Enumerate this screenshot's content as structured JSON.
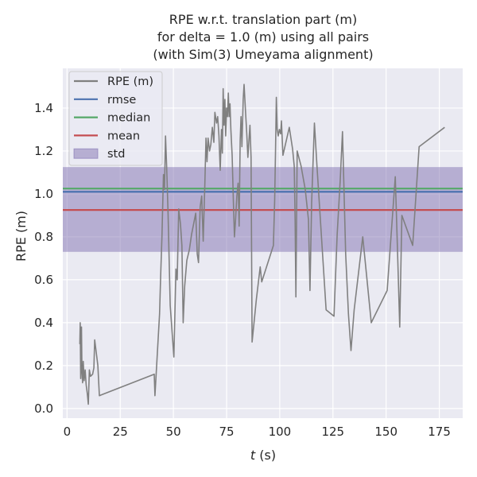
{
  "chart_data": {
    "type": "line",
    "title_lines": [
      "RPE w.r.t. translation part (m)",
      "for delta = 1.0 (m) using all pairs",
      "(with Sim(3) Umeyama alignment)"
    ],
    "xlabel_italic": "t",
    "xlabel_rest": " (s)",
    "ylabel": "RPE (m)",
    "xlim": [
      -2,
      186
    ],
    "ylim": [
      -0.045,
      1.585
    ],
    "x_ticks": [
      0,
      25,
      50,
      75,
      100,
      125,
      150,
      175
    ],
    "x_tick_labels": [
      "0",
      "25",
      "50",
      "75",
      "100",
      "125",
      "150",
      "175"
    ],
    "y_ticks": [
      0.0,
      0.2,
      0.4,
      0.6,
      0.8,
      1.0,
      1.2,
      1.4
    ],
    "y_tick_labels": [
      "0.0",
      "0.2",
      "0.4",
      "0.6",
      "0.8",
      "1.0",
      "1.2",
      "1.4"
    ],
    "grid": true,
    "legend_position": "upper-left",
    "legend": [
      {
        "label": "RPE (m)",
        "kind": "line",
        "color": "#808080"
      },
      {
        "label": "rmse",
        "kind": "line",
        "color": "#4c72b0"
      },
      {
        "label": "median",
        "kind": "line",
        "color": "#55a868"
      },
      {
        "label": "mean",
        "kind": "line",
        "color": "#c44e52"
      },
      {
        "label": "std",
        "kind": "patch",
        "color": "#8172b2"
      }
    ],
    "stats": {
      "rmse": 1.01,
      "median": 1.025,
      "mean": 0.925,
      "std_lower": 0.73,
      "std_upper": 1.125
    },
    "colors": {
      "background": "#eaeaf2",
      "grid": "#ffffff",
      "rpe": "#808080",
      "rmse": "#4c72b0",
      "median": "#55a868",
      "mean": "#c44e52",
      "std": "#8172b2"
    },
    "series": [
      {
        "name": "RPE (m)",
        "points": [
          [
            6.0,
            0.3
          ],
          [
            6.2,
            0.4
          ],
          [
            6.4,
            0.14
          ],
          [
            6.6,
            0.33
          ],
          [
            6.8,
            0.38
          ],
          [
            7.0,
            0.17
          ],
          [
            7.3,
            0.12
          ],
          [
            7.6,
            0.22
          ],
          [
            8.0,
            0.13
          ],
          [
            8.5,
            0.18
          ],
          [
            9.0,
            0.11
          ],
          [
            9.5,
            0.07
          ],
          [
            10.0,
            0.02
          ],
          [
            10.5,
            0.18
          ],
          [
            11.0,
            0.15
          ],
          [
            12.0,
            0.16
          ],
          [
            12.6,
            0.19
          ],
          [
            13.0,
            0.32
          ],
          [
            14.5,
            0.2
          ],
          [
            15.2,
            0.06
          ],
          [
            41.0,
            0.16
          ],
          [
            41.3,
            0.06
          ],
          [
            43.5,
            0.44
          ],
          [
            44.0,
            0.62
          ],
          [
            44.6,
            0.8
          ],
          [
            45.3,
            1.09
          ],
          [
            45.8,
            1.02
          ],
          [
            46.3,
            1.27
          ],
          [
            46.8,
            1.13
          ],
          [
            47.5,
            0.91
          ],
          [
            48.5,
            0.48
          ],
          [
            49.5,
            0.34
          ],
          [
            50.2,
            0.24
          ],
          [
            51.2,
            0.65
          ],
          [
            51.8,
            0.6
          ],
          [
            52.5,
            0.93
          ],
          [
            53.3,
            0.86
          ],
          [
            54.0,
            0.76
          ],
          [
            54.6,
            0.4
          ],
          [
            55.3,
            0.57
          ],
          [
            56.3,
            0.69
          ],
          [
            57.5,
            0.74
          ],
          [
            58.5,
            0.81
          ],
          [
            60.5,
            0.91
          ],
          [
            61.2,
            0.72
          ],
          [
            61.8,
            0.68
          ],
          [
            62.6,
            0.94
          ],
          [
            63.3,
            0.99
          ],
          [
            64.0,
            0.78
          ],
          [
            64.8,
            1.05
          ],
          [
            65.3,
            1.26
          ],
          [
            65.8,
            1.15
          ],
          [
            66.3,
            1.26
          ],
          [
            67.0,
            1.2
          ],
          [
            67.6,
            1.23
          ],
          [
            68.3,
            1.31
          ],
          [
            69.0,
            1.24
          ],
          [
            69.5,
            1.38
          ],
          [
            70.3,
            1.33
          ],
          [
            70.8,
            1.36
          ],
          [
            71.4,
            1.27
          ],
          [
            72.0,
            1.11
          ],
          [
            72.6,
            1.3
          ],
          [
            73.0,
            1.19
          ],
          [
            73.4,
            1.49
          ],
          [
            73.8,
            1.32
          ],
          [
            74.2,
            1.44
          ],
          [
            74.6,
            1.27
          ],
          [
            75.0,
            1.4
          ],
          [
            75.4,
            1.36
          ],
          [
            75.8,
            1.47
          ],
          [
            76.2,
            1.36
          ],
          [
            76.6,
            1.42
          ],
          [
            77.0,
            1.3
          ],
          [
            77.6,
            1.18
          ],
          [
            78.2,
            0.96
          ],
          [
            78.7,
            0.8
          ],
          [
            79.2,
            0.88
          ],
          [
            79.8,
            0.99
          ],
          [
            80.4,
            1.05
          ],
          [
            80.9,
            0.85
          ],
          [
            81.4,
            1.25
          ],
          [
            81.8,
            1.36
          ],
          [
            82.2,
            1.22
          ],
          [
            82.8,
            1.44
          ],
          [
            83.2,
            1.51
          ],
          [
            83.8,
            1.4
          ],
          [
            84.5,
            1.28
          ],
          [
            85.0,
            1.17
          ],
          [
            85.4,
            1.23
          ],
          [
            86.0,
            1.32
          ],
          [
            86.5,
            1.17
          ],
          [
            87.0,
            0.31
          ],
          [
            89.0,
            0.51
          ],
          [
            90.8,
            0.66
          ],
          [
            91.5,
            0.59
          ],
          [
            97.0,
            0.76
          ],
          [
            97.6,
            0.97
          ],
          [
            98.0,
            1.21
          ],
          [
            98.4,
            1.45
          ],
          [
            98.8,
            1.3
          ],
          [
            99.3,
            1.27
          ],
          [
            99.8,
            1.3
          ],
          [
            100.4,
            1.28
          ],
          [
            100.8,
            1.34
          ],
          [
            101.5,
            1.18
          ],
          [
            104.5,
            1.31
          ],
          [
            106.0,
            1.21
          ],
          [
            106.8,
            1.13
          ],
          [
            107.2,
            0.88
          ],
          [
            107.6,
            0.52
          ],
          [
            108.2,
            1.2
          ],
          [
            108.7,
            1.18
          ],
          [
            110.0,
            1.13
          ],
          [
            112.0,
            1.02
          ],
          [
            113.5,
            0.88
          ],
          [
            114.2,
            0.55
          ],
          [
            115.0,
            0.96
          ],
          [
            116.3,
            1.33
          ],
          [
            117.5,
            1.13
          ],
          [
            121.8,
            0.46
          ],
          [
            125.5,
            0.43
          ],
          [
            127.0,
            0.81
          ],
          [
            128.4,
            1.06
          ],
          [
            129.5,
            1.29
          ],
          [
            131.0,
            0.72
          ],
          [
            132.3,
            0.44
          ],
          [
            133.5,
            0.27
          ],
          [
            135.0,
            0.46
          ],
          [
            139.0,
            0.8
          ],
          [
            143.0,
            0.4
          ],
          [
            150.5,
            0.55
          ],
          [
            154.3,
            1.08
          ],
          [
            155.3,
            0.75
          ],
          [
            156.4,
            0.38
          ],
          [
            157.4,
            0.9
          ],
          [
            162.5,
            0.76
          ],
          [
            165.5,
            1.22
          ],
          [
            177.5,
            1.31
          ]
        ]
      }
    ]
  }
}
